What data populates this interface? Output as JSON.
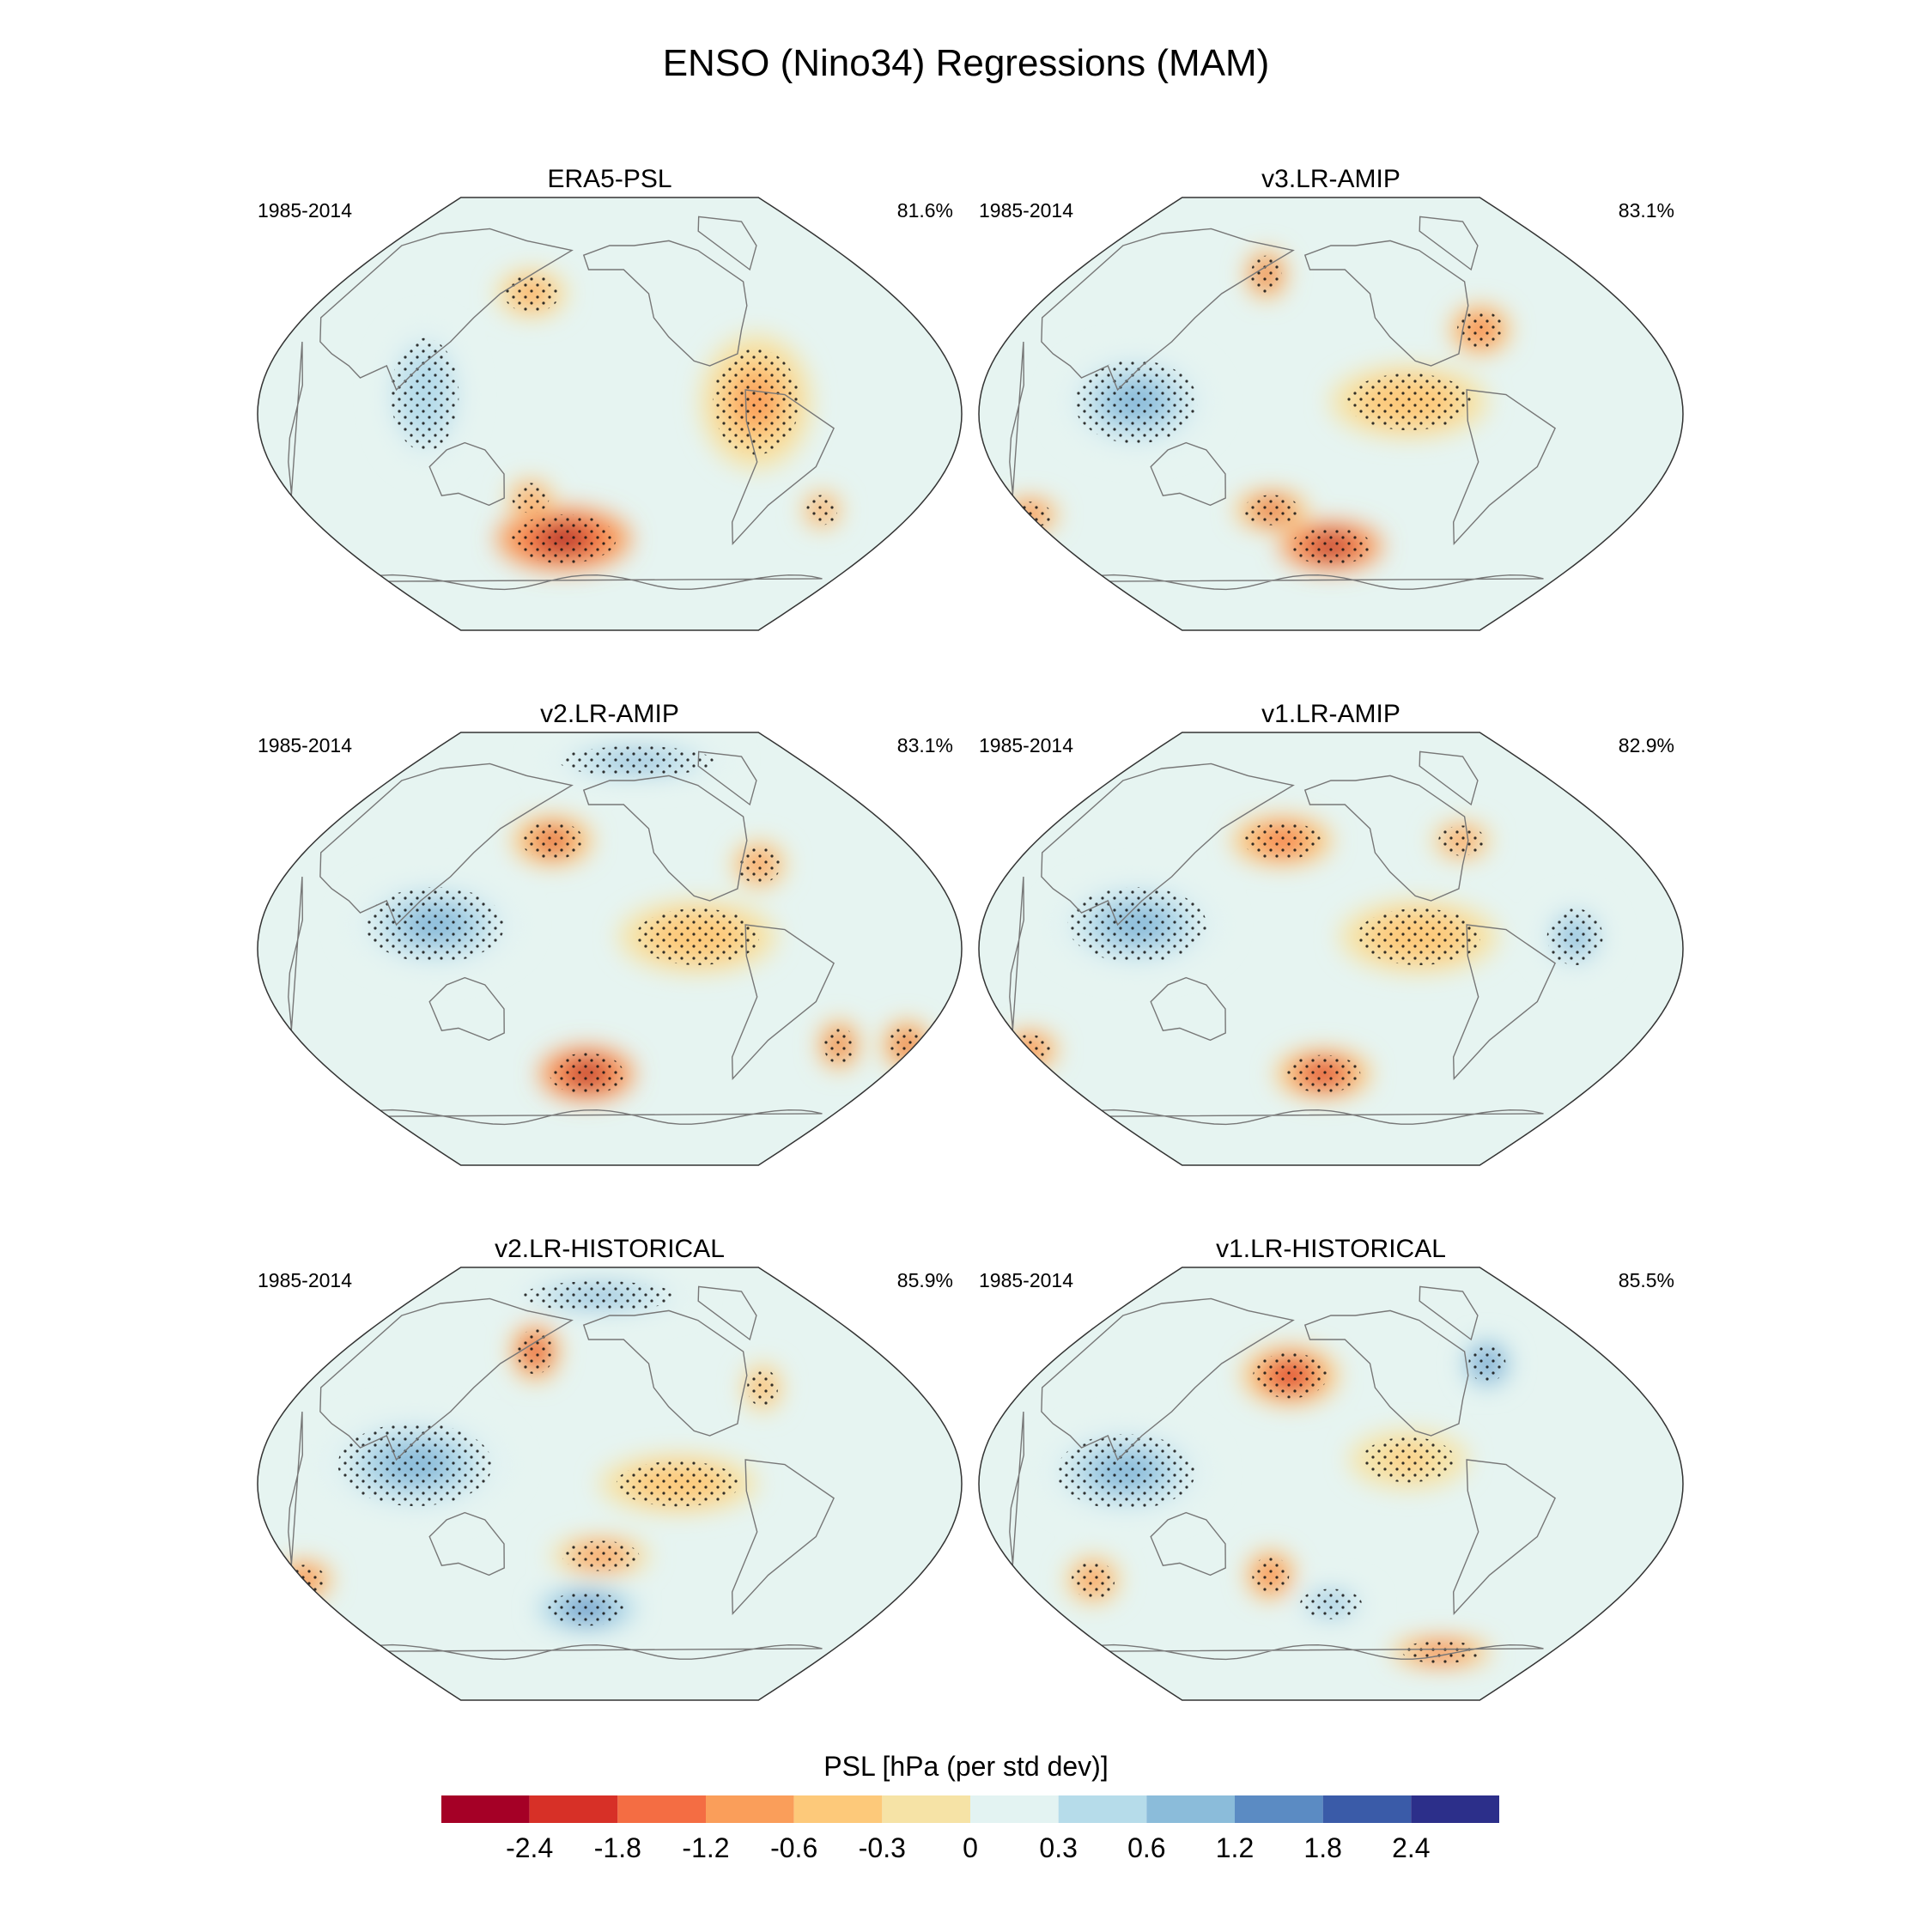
{
  "figure": {
    "title": "ENSO (Nino34) Regressions (MAM)"
  },
  "chart_data": {
    "type": "map-grid",
    "title": "ENSO (Nino34) Regressions (MAM)",
    "projection": "robinson-like (Pacific centered)",
    "variable_label": "PSL [hPa (per std dev)]",
    "colorbar": {
      "ticks": [
        "-2.4",
        "-1.8",
        "-1.2",
        "-0.6",
        "-0.3",
        "0",
        "0.3",
        "0.6",
        "1.2",
        "1.8",
        "2.4"
      ],
      "colors": [
        "#a50026",
        "#d73027",
        "#f46d43",
        "#fa9e5a",
        "#fdc97a",
        "#f6e3a6",
        "#e3f3f2",
        "#b6dcea",
        "#8bbcda",
        "#5b8bc3",
        "#3a5ba8",
        "#2c2f8a"
      ]
    },
    "panels": [
      {
        "name": "ERA5-PSL",
        "years": "1985-2014",
        "pct": "81.6%",
        "blobs": [
          {
            "lon": 180,
            "lat": -52,
            "rx": 34,
            "ry": 13,
            "level": -2.6
          },
          {
            "lon": 115,
            "lat": 8,
            "rx": 22,
            "ry": 30,
            "level": 0.5
          },
          {
            "lon": 285,
            "lat": 5,
            "rx": 28,
            "ry": 28,
            "level": -0.7
          },
          {
            "lon": 335,
            "lat": -40,
            "rx": 10,
            "ry": 8,
            "level": -1.1
          },
          {
            "lon": 160,
            "lat": 50,
            "rx": 18,
            "ry": 10,
            "level": -1.0
          },
          {
            "lon": 165,
            "lat": -35,
            "rx": 12,
            "ry": 8,
            "level": -1.1
          }
        ]
      },
      {
        "name": "v3.LR-AMIP",
        "years": "1985-2014",
        "pct": "83.1%",
        "blobs": [
          {
            "lon": 210,
            "lat": -55,
            "rx": 26,
            "ry": 10,
            "level": -2.6
          },
          {
            "lon": 110,
            "lat": 5,
            "rx": 40,
            "ry": 22,
            "level": 0.8
          },
          {
            "lon": 250,
            "lat": 5,
            "rx": 40,
            "ry": 15,
            "level": -0.6
          },
          {
            "lon": 175,
            "lat": -40,
            "rx": 18,
            "ry": 8,
            "level": -2.0
          },
          {
            "lon": 165,
            "lat": 58,
            "rx": 10,
            "ry": 10,
            "level": -2.0
          },
          {
            "lon": 295,
            "lat": 35,
            "rx": 15,
            "ry": 10,
            "level": -1.3
          },
          {
            "lon": 30,
            "lat": -42,
            "rx": 14,
            "ry": 7,
            "level": -1.5
          }
        ]
      },
      {
        "name": "v2.LR-AMIP",
        "years": "1985-2014",
        "pct": "83.1%",
        "blobs": [
          {
            "lon": 195,
            "lat": -52,
            "rx": 24,
            "ry": 11,
            "level": -2.6
          },
          {
            "lon": 120,
            "lat": 10,
            "rx": 45,
            "ry": 20,
            "level": 0.9
          },
          {
            "lon": 255,
            "lat": 5,
            "rx": 40,
            "ry": 15,
            "level": -0.6
          },
          {
            "lon": 175,
            "lat": 45,
            "rx": 20,
            "ry": 10,
            "level": -2.0
          },
          {
            "lon": 295,
            "lat": 35,
            "rx": 14,
            "ry": 10,
            "level": -1.2
          },
          {
            "lon": 25,
            "lat": -40,
            "rx": 12,
            "ry": 10,
            "level": -2.0
          },
          {
            "lon": 345,
            "lat": -40,
            "rx": 10,
            "ry": 10,
            "level": -2.0
          },
          {
            "lon": 235,
            "lat": 78,
            "rx": 50,
            "ry": 8,
            "level": 0.8
          }
        ]
      },
      {
        "name": "v1.LR-AMIP",
        "years": "1985-2014",
        "pct": "82.9%",
        "blobs": [
          {
            "lon": 205,
            "lat": -52,
            "rx": 24,
            "ry": 10,
            "level": -2.4
          },
          {
            "lon": 110,
            "lat": 10,
            "rx": 45,
            "ry": 20,
            "level": 0.8
          },
          {
            "lon": 255,
            "lat": 5,
            "rx": 40,
            "ry": 15,
            "level": -0.6
          },
          {
            "lon": 180,
            "lat": 45,
            "rx": 25,
            "ry": 10,
            "level": -1.5
          },
          {
            "lon": 30,
            "lat": -42,
            "rx": 14,
            "ry": 8,
            "level": -1.8
          },
          {
            "lon": 335,
            "lat": 5,
            "rx": 18,
            "ry": 15,
            "level": 0.6
          },
          {
            "lon": 290,
            "lat": 45,
            "rx": 15,
            "ry": 8,
            "level": -1.2
          }
        ]
      },
      {
        "name": "v2.LR-HISTORICAL",
        "years": "1985-2014",
        "pct": "85.9%",
        "blobs": [
          {
            "lon": 195,
            "lat": -52,
            "rx": 25,
            "ry": 9,
            "level": 1.2
          },
          {
            "lon": 110,
            "lat": 8,
            "rx": 50,
            "ry": 22,
            "level": 0.8
          },
          {
            "lon": 245,
            "lat": 0,
            "rx": 40,
            "ry": 12,
            "level": -0.6
          },
          {
            "lon": 160,
            "lat": 55,
            "rx": 12,
            "ry": 12,
            "level": -2.2
          },
          {
            "lon": 30,
            "lat": -40,
            "rx": 14,
            "ry": 8,
            "level": -1.5
          },
          {
            "lon": 205,
            "lat": -30,
            "rx": 25,
            "ry": 8,
            "level": -1.2
          },
          {
            "lon": 200,
            "lat": 78,
            "rx": 50,
            "ry": 8,
            "level": 0.9
          },
          {
            "lon": 300,
            "lat": 40,
            "rx": 10,
            "ry": 10,
            "level": -0.8
          }
        ]
      },
      {
        "name": "v1.LR-HISTORICAL",
        "years": "1985-2014",
        "pct": "85.5%",
        "blobs": [
          {
            "lon": 210,
            "lat": -50,
            "rx": 20,
            "ry": 8,
            "level": 0.9
          },
          {
            "lon": 105,
            "lat": 5,
            "rx": 45,
            "ry": 20,
            "level": 0.8
          },
          {
            "lon": 250,
            "lat": 10,
            "rx": 30,
            "ry": 12,
            "level": -0.5
          },
          {
            "lon": 185,
            "lat": 45,
            "rx": 24,
            "ry": 12,
            "level": -2.4
          },
          {
            "lon": 175,
            "lat": -38,
            "rx": 12,
            "ry": 10,
            "level": -1.8
          },
          {
            "lon": 70,
            "lat": -40,
            "rx": 14,
            "ry": 10,
            "level": -1.2
          },
          {
            "lon": 310,
            "lat": 50,
            "rx": 12,
            "ry": 10,
            "level": 1.2
          },
          {
            "lon": 300,
            "lat": -70,
            "rx": 25,
            "ry": 6,
            "level": -1.6
          }
        ]
      }
    ]
  }
}
